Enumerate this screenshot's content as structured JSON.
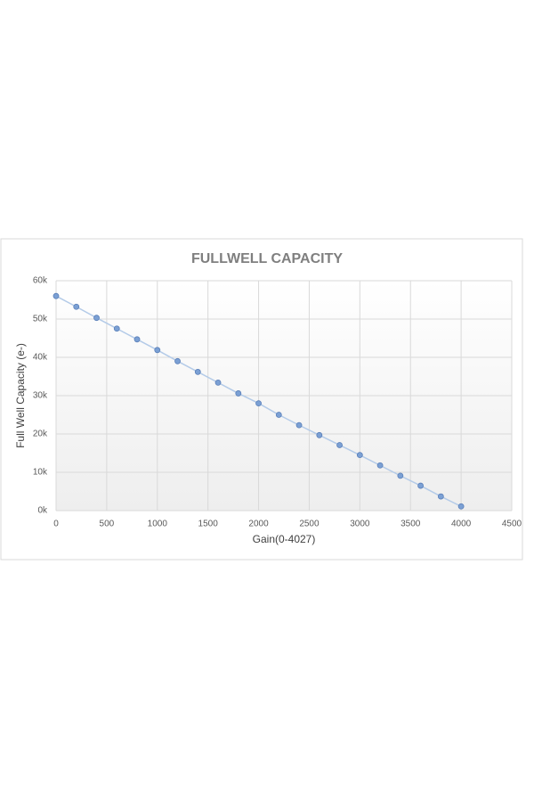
{
  "chart_data": {
    "type": "line",
    "title": "FULLWELL CAPACITY",
    "x_label": "Gain(0-4027)",
    "y_label": "Full Well Capacity (e-)",
    "x": [
      0,
      200,
      400,
      600,
      800,
      1000,
      1200,
      1400,
      1600,
      1800,
      2000,
      2200,
      2400,
      2600,
      2800,
      3000,
      3200,
      3400,
      3600,
      3800,
      4000
    ],
    "series": [
      {
        "color": "#7ba0d4",
        "values": [
          56000,
          53200,
          50300,
          47500,
          44700,
          41900,
          39000,
          36200,
          33400,
          30600,
          28000,
          25000,
          22300,
          19700,
          17100,
          14500,
          11800,
          9100,
          6500,
          3700,
          1100
        ]
      }
    ],
    "xlim": [
      0,
      4500
    ],
    "xticks": [
      0,
      500,
      1000,
      1500,
      2000,
      2500,
      3000,
      3500,
      4000,
      4500
    ],
    "ylim": [
      0,
      60000
    ],
    "yticks": [
      {
        "value": 0,
        "label": "0k"
      },
      {
        "value": 10000,
        "label": "10k"
      },
      {
        "value": 20000,
        "label": "20k"
      },
      {
        "value": 30000,
        "label": "30k"
      },
      {
        "value": 40000,
        "label": "40k"
      },
      {
        "value": 50000,
        "label": "50k"
      },
      {
        "value": 60000,
        "label": "60k"
      }
    ],
    "grid": true
  }
}
